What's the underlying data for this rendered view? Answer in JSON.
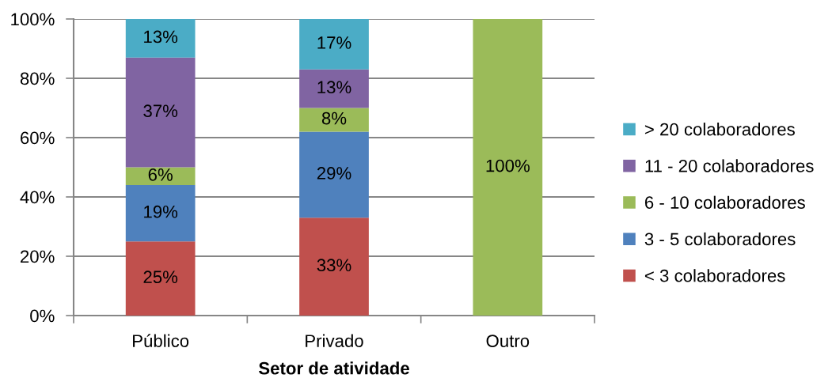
{
  "chart_data": {
    "type": "bar",
    "stacked": true,
    "xlabel": "Setor de atividade",
    "categories": [
      "Público",
      "Privado",
      "Outro"
    ],
    "series": [
      {
        "name": "< 3 colaboradores",
        "color": "#c0504d",
        "values": [
          25,
          33,
          null
        ],
        "value_labels": [
          "25%",
          "33%",
          null
        ]
      },
      {
        "name": "3 - 5 colaboradores",
        "color": "#4f81bd",
        "values": [
          19,
          29,
          null
        ],
        "value_labels": [
          "19%",
          "29%",
          null
        ]
      },
      {
        "name": "6 - 10 colaboradores",
        "color": "#9bbb59",
        "values": [
          6,
          8,
          100
        ],
        "value_labels": [
          "6%",
          "8%",
          "100%"
        ]
      },
      {
        "name": "11 - 20 colaboradores",
        "color": "#8064a2",
        "values": [
          37,
          13,
          null
        ],
        "value_labels": [
          "37%",
          "13%",
          null
        ]
      },
      {
        "name": "> 20 colaboradores",
        "color": "#4bacc6",
        "values": [
          13,
          17,
          null
        ],
        "value_labels": [
          "13%",
          "17%",
          null
        ]
      }
    ],
    "ylim": [
      0,
      100
    ],
    "yticks": [
      {
        "value": 0,
        "label": "0%"
      },
      {
        "value": 20,
        "label": "20%"
      },
      {
        "value": 40,
        "label": "40%"
      },
      {
        "value": 60,
        "label": "60%"
      },
      {
        "value": 80,
        "label": "80%"
      },
      {
        "value": 100,
        "label": "100%"
      }
    ],
    "grid": "y",
    "legend": "right"
  }
}
